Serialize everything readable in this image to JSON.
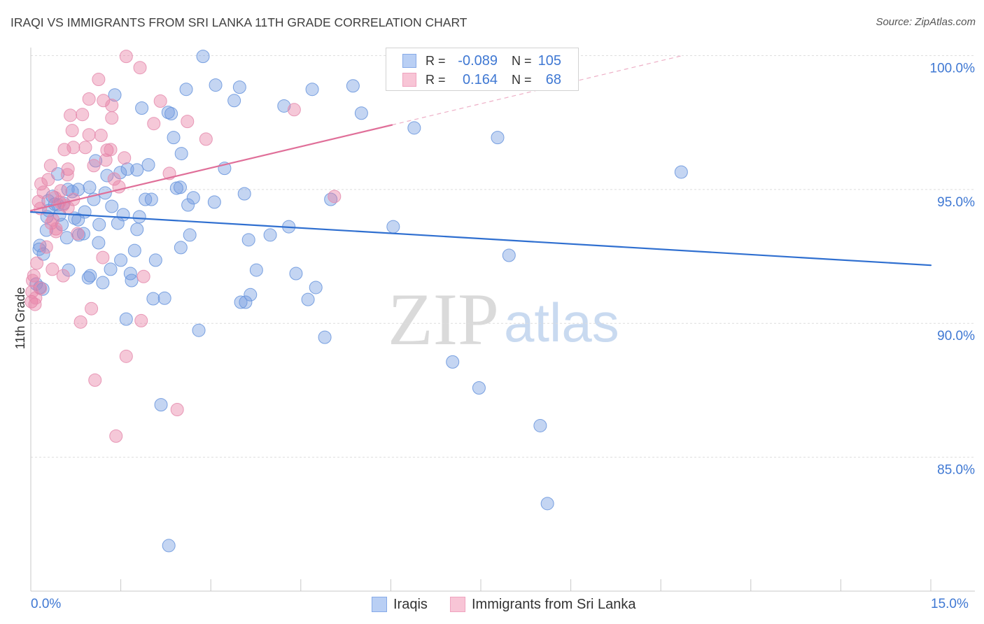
{
  "source": "Source: ZipAtlas.com",
  "watermark": {
    "part1": "ZIP",
    "part2": "atlas"
  },
  "colors": {
    "iraqis_fill": "#739be1",
    "iraqis_stroke": "#6d98de",
    "iraqis_trend": "#2f6fd0",
    "iraqis_swatch": "#b9cff4",
    "iraqis_swatch_border": "#86aae8",
    "sri_lanka_fill": "#e87ca3",
    "sri_lanka_stroke": "#e58fb0",
    "sri_lanka_trend": "#e06f99",
    "sri_lanka_swatch": "#f8c5d6",
    "sri_lanka_swatch_border": "#efa3bf",
    "axis": "#c8c8c8",
    "grid": "#dedede"
  },
  "chart_data": {
    "type": "scatter",
    "title": "IRAQI VS IMMIGRANTS FROM SRI LANKA 11TH GRADE CORRELATION CHART",
    "ylabel": "11th Grade",
    "xlim": [
      0,
      15
    ],
    "ylim": [
      80,
      100.3
    ],
    "grid": true,
    "x_ticks": [
      0,
      1.5,
      3,
      4.5,
      6,
      7.5,
      9,
      10.5,
      12,
      13.5,
      15
    ],
    "x_tick_labels": [
      {
        "value": 0,
        "label": "0.0%"
      },
      {
        "value": 15,
        "label": "15.0%"
      }
    ],
    "y_ticks": [
      {
        "value": 100,
        "label": "100.0%"
      },
      {
        "value": 95,
        "label": "95.0%"
      },
      {
        "value": 90,
        "label": "90.0%"
      },
      {
        "value": 85,
        "label": "85.0%"
      }
    ],
    "stats_labels": {
      "r": "R =",
      "n": "N ="
    },
    "series": [
      {
        "name": "Iraqis",
        "r": "-0.089",
        "n": "105",
        "trend": {
          "x0": 0,
          "y0": 94.16,
          "x1": 15,
          "y1": 92.17
        },
        "points": [
          [
            2.87,
            99.97
          ],
          [
            3.08,
            98.9
          ],
          [
            3.48,
            98.82
          ],
          [
            2.59,
            98.74
          ],
          [
            1.4,
            98.53
          ],
          [
            4.69,
            98.74
          ],
          [
            5.37,
            98.87
          ],
          [
            3.39,
            98.32
          ],
          [
            4.22,
            98.12
          ],
          [
            1.85,
            98.04
          ],
          [
            2.29,
            97.88
          ],
          [
            2.34,
            97.83
          ],
          [
            5.51,
            97.85
          ],
          [
            6.39,
            97.3
          ],
          [
            7.78,
            96.94
          ],
          [
            2.38,
            96.94
          ],
          [
            2.51,
            96.34
          ],
          [
            1.08,
            96.07
          ],
          [
            1.96,
            95.92
          ],
          [
            3.23,
            95.79
          ],
          [
            1.49,
            95.63
          ],
          [
            1.77,
            95.73
          ],
          [
            0.45,
            95.58
          ],
          [
            1.27,
            95.52
          ],
          [
            1.61,
            95.76
          ],
          [
            10.84,
            95.65
          ],
          [
            0.98,
            95.08
          ],
          [
            0.62,
            95.0
          ],
          [
            0.79,
            95.0
          ],
          [
            2.43,
            95.05
          ],
          [
            2.49,
            95.08
          ],
          [
            1.24,
            94.87
          ],
          [
            3.56,
            94.84
          ],
          [
            0.69,
            94.92
          ],
          [
            0.36,
            94.74
          ],
          [
            1.05,
            94.63
          ],
          [
            1.91,
            94.63
          ],
          [
            2.01,
            94.63
          ],
          [
            2.71,
            94.69
          ],
          [
            3.06,
            94.53
          ],
          [
            2.62,
            94.42
          ],
          [
            5.0,
            94.63
          ],
          [
            1.35,
            94.37
          ],
          [
            0.45,
            94.42
          ],
          [
            0.55,
            94.48
          ],
          [
            0.3,
            94.21
          ],
          [
            0.9,
            94.16
          ],
          [
            1.54,
            94.06
          ],
          [
            1.81,
            93.98
          ],
          [
            0.27,
            93.98
          ],
          [
            0.73,
            93.93
          ],
          [
            0.79,
            93.87
          ],
          [
            1.45,
            93.74
          ],
          [
            1.14,
            93.69
          ],
          [
            0.52,
            93.69
          ],
          [
            4.3,
            93.61
          ],
          [
            6.04,
            93.61
          ],
          [
            1.77,
            93.51
          ],
          [
            0.26,
            93.48
          ],
          [
            0.88,
            93.35
          ],
          [
            2.65,
            93.3
          ],
          [
            3.99,
            93.3
          ],
          [
            0.8,
            93.3
          ],
          [
            3.63,
            93.12
          ],
          [
            1.13,
            93.01
          ],
          [
            0.15,
            92.91
          ],
          [
            0.14,
            92.77
          ],
          [
            2.5,
            92.83
          ],
          [
            1.73,
            92.72
          ],
          [
            0.21,
            92.59
          ],
          [
            7.97,
            92.54
          ],
          [
            2.08,
            92.36
          ],
          [
            1.5,
            92.36
          ],
          [
            0.63,
            91.99
          ],
          [
            1.33,
            92.02
          ],
          [
            3.76,
            91.99
          ],
          [
            4.42,
            91.86
          ],
          [
            0.99,
            91.78
          ],
          [
            0.96,
            91.7
          ],
          [
            1.66,
            91.86
          ],
          [
            1.68,
            91.6
          ],
          [
            1.2,
            91.52
          ],
          [
            0.09,
            91.47
          ],
          [
            0.15,
            91.34
          ],
          [
            0.2,
            91.28
          ],
          [
            4.75,
            91.34
          ],
          [
            3.66,
            91.07
          ],
          [
            2.04,
            90.92
          ],
          [
            2.23,
            90.94
          ],
          [
            3.5,
            90.79
          ],
          [
            3.58,
            90.79
          ],
          [
            4.62,
            90.89
          ],
          [
            1.59,
            90.16
          ],
          [
            2.8,
            89.74
          ],
          [
            4.9,
            89.48
          ],
          [
            7.03,
            88.56
          ],
          [
            7.47,
            87.59
          ],
          [
            2.17,
            86.96
          ],
          [
            8.49,
            86.18
          ],
          [
            8.61,
            83.27
          ],
          [
            2.3,
            81.7
          ],
          [
            0.48,
            94.05
          ],
          [
            0.29,
            94.58
          ],
          [
            0.4,
            94.45
          ],
          [
            0.6,
            93.2
          ]
        ]
      },
      {
        "name": "Immigrants from Sri Lanka",
        "r": "0.164",
        "n": "68",
        "trend": {
          "x0": 0,
          "y0": 94.21,
          "x1": 6.02,
          "y1": 97.41,
          "extension": {
            "x": 10.86,
            "y": 100.0
          }
        },
        "points": [
          [
            1.59,
            99.97
          ],
          [
            1.82,
            99.55
          ],
          [
            1.13,
            99.11
          ],
          [
            0.97,
            98.38
          ],
          [
            1.21,
            98.32
          ],
          [
            1.35,
            98.14
          ],
          [
            2.16,
            98.3
          ],
          [
            4.39,
            97.98
          ],
          [
            0.66,
            97.77
          ],
          [
            0.86,
            97.8
          ],
          [
            1.35,
            97.67
          ],
          [
            2.05,
            97.46
          ],
          [
            2.61,
            97.54
          ],
          [
            0.69,
            97.2
          ],
          [
            0.97,
            97.04
          ],
          [
            1.17,
            97.02
          ],
          [
            2.92,
            96.88
          ],
          [
            0.91,
            96.57
          ],
          [
            0.56,
            96.49
          ],
          [
            0.71,
            96.57
          ],
          [
            1.27,
            96.47
          ],
          [
            1.33,
            96.49
          ],
          [
            1.56,
            96.18
          ],
          [
            1.25,
            96.1
          ],
          [
            1.05,
            95.89
          ],
          [
            0.33,
            95.89
          ],
          [
            0.62,
            95.76
          ],
          [
            2.31,
            95.6
          ],
          [
            0.61,
            95.55
          ],
          [
            1.39,
            95.39
          ],
          [
            0.29,
            95.37
          ],
          [
            0.17,
            95.21
          ],
          [
            1.47,
            95.1
          ],
          [
            0.21,
            94.9
          ],
          [
            5.06,
            94.74
          ],
          [
            0.71,
            94.63
          ],
          [
            0.13,
            94.55
          ],
          [
            0.48,
            94.53
          ],
          [
            0.54,
            94.42
          ],
          [
            0.62,
            94.32
          ],
          [
            0.16,
            94.29
          ],
          [
            0.37,
            93.87
          ],
          [
            0.34,
            93.74
          ],
          [
            0.42,
            93.53
          ],
          [
            0.42,
            93.43
          ],
          [
            0.78,
            93.35
          ],
          [
            0.26,
            92.85
          ],
          [
            1.2,
            92.46
          ],
          [
            0.1,
            92.25
          ],
          [
            0.36,
            92.02
          ],
          [
            0.05,
            91.78
          ],
          [
            0.54,
            91.78
          ],
          [
            1.88,
            91.75
          ],
          [
            0.16,
            91.31
          ],
          [
            0.01,
            90.81
          ],
          [
            0.07,
            90.71
          ],
          [
            1.01,
            90.55
          ],
          [
            0.83,
            90.05
          ],
          [
            1.84,
            90.1
          ],
          [
            1.59,
            88.77
          ],
          [
            1.07,
            87.88
          ],
          [
            2.44,
            86.78
          ],
          [
            1.42,
            85.79
          ],
          [
            0.02,
            91.18
          ],
          [
            0.03,
            91.6
          ],
          [
            0.4,
            94.7
          ],
          [
            0.08,
            90.95
          ],
          [
            0.5,
            94.95
          ]
        ]
      }
    ]
  }
}
